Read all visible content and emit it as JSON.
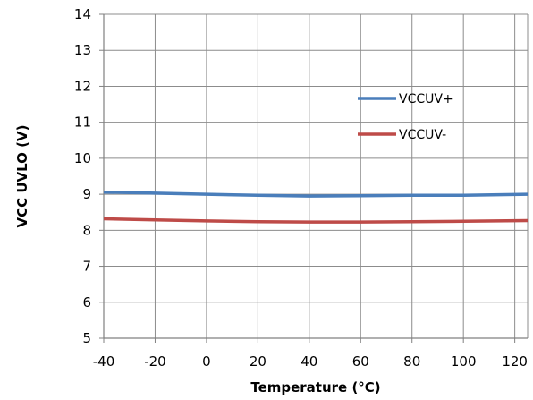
{
  "chart_data": {
    "type": "line",
    "xlabel": "Temperature (°C)",
    "ylabel": "VCC UVLO (V)",
    "xlim": [
      -40,
      125
    ],
    "ylim": [
      5,
      14
    ],
    "xticks": [
      -40,
      -20,
      0,
      20,
      40,
      60,
      80,
      100,
      120
    ],
    "yticks": [
      5,
      6,
      7,
      8,
      9,
      10,
      11,
      12,
      13,
      14
    ],
    "grid": true,
    "legend_position": "right",
    "series": [
      {
        "name": "VCCUV+",
        "color": "#4a7ebb",
        "x": [
          -40,
          -20,
          0,
          20,
          40,
          60,
          80,
          100,
          125
        ],
        "y": [
          9.06,
          9.03,
          9.0,
          8.97,
          8.95,
          8.96,
          8.97,
          8.97,
          9.0
        ]
      },
      {
        "name": "VCCUV-",
        "color": "#be4b48",
        "x": [
          -40,
          -20,
          0,
          20,
          40,
          60,
          80,
          100,
          125
        ],
        "y": [
          8.32,
          8.29,
          8.26,
          8.24,
          8.23,
          8.23,
          8.24,
          8.25,
          8.27
        ]
      }
    ]
  }
}
